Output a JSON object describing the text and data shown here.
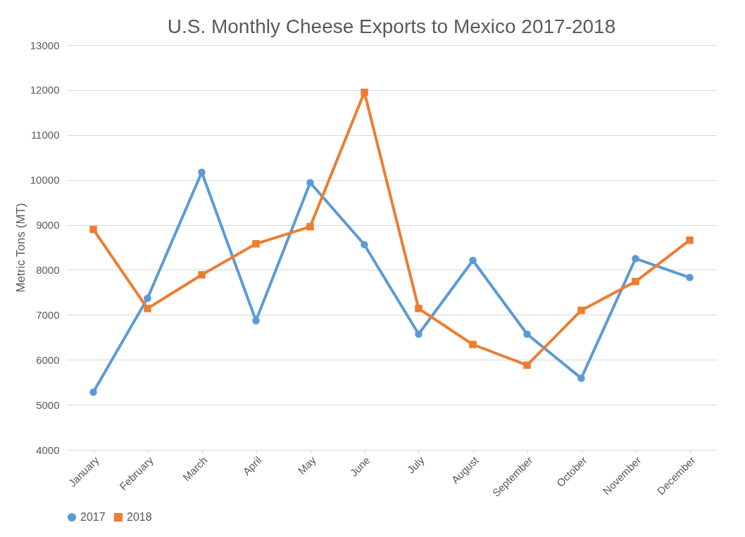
{
  "chart_data": {
    "type": "line",
    "title": "U.S. Monthly Cheese Exports to Mexico 2017-2018",
    "ylabel": "Metric Tons (MT)",
    "categories": [
      "January",
      "February",
      "March",
      "April",
      "May",
      "June",
      "July",
      "August",
      "September",
      "October",
      "November",
      "December"
    ],
    "series": [
      {
        "name": "2017",
        "color": "#5b9bd5",
        "marker": "circle",
        "values": [
          5280,
          7370,
          10170,
          6870,
          9940,
          8560,
          6570,
          8210,
          6570,
          5590,
          8250,
          7830
        ]
      },
      {
        "name": "2018",
        "color": "#ed7d31",
        "marker": "square",
        "values": [
          8900,
          7140,
          7890,
          8580,
          8960,
          11950,
          7140,
          6340,
          5880,
          7100,
          7740,
          8660
        ]
      }
    ],
    "ylim": [
      4000,
      13000
    ],
    "yticks": [
      4000,
      5000,
      6000,
      7000,
      8000,
      9000,
      10000,
      11000,
      12000,
      13000
    ],
    "grid": "y",
    "legend": "bottom",
    "line_style": "solid"
  }
}
